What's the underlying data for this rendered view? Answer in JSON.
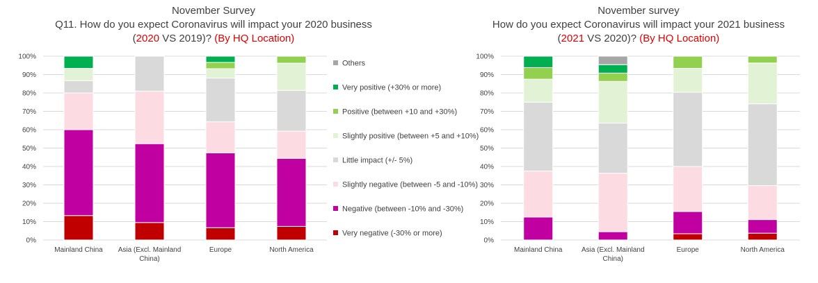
{
  "chart_data": [
    {
      "type": "bar",
      "stacked": true,
      "title_lines": [
        [
          {
            "text": "November Survey",
            "color": "#404040"
          }
        ],
        [
          {
            "text": "Q11. How do you expect Coronavirus will impact your 2020 business",
            "color": "#404040"
          }
        ],
        [
          {
            "text": "(",
            "color": "#404040"
          },
          {
            "text": "2020",
            "color": "#e00000"
          },
          {
            "text": " VS 2019)? ",
            "color": "#404040"
          },
          {
            "text": "(By HQ Location)",
            "color": "#e00000"
          }
        ]
      ],
      "categories": [
        [
          "Mainland China"
        ],
        [
          "Asia (Excl. Mainland",
          "China)"
        ],
        [
          "Europe"
        ],
        [
          "North America"
        ]
      ],
      "ylim": [
        0,
        100
      ],
      "yticks": [
        "0%",
        "10%",
        "20%",
        "30%",
        "40%",
        "50%",
        "60%",
        "70%",
        "80%",
        "90%",
        "100%"
      ],
      "grid": true,
      "series": [
        {
          "name": "Very negative (-30% or more)",
          "color": "#c00000",
          "values": [
            13.3,
            9.5,
            6.7,
            7.4
          ]
        },
        {
          "name": "Negative (between -10% and -30%)",
          "color": "#c000a0",
          "values": [
            46.7,
            42.9,
            40.7,
            37.0
          ]
        },
        {
          "name": "Slightly negative (between -5 and -10%)",
          "color": "#fcdbe3",
          "values": [
            20.0,
            28.6,
            16.9,
            14.8
          ]
        },
        {
          "name": "Little impact (+/- 5%)",
          "color": "#d9d9d9",
          "values": [
            6.7,
            19.0,
            23.8,
            22.2
          ]
        },
        {
          "name": "Slightly positive (between +5 and +10%)",
          "color": "#e2f2d4",
          "values": [
            6.7,
            0,
            5.1,
            14.8
          ]
        },
        {
          "name": "Positive (between +10 and +30%)",
          "color": "#92d050",
          "values": [
            0,
            0,
            3.4,
            3.8
          ]
        },
        {
          "name": "Very positive (+30% or more)",
          "color": "#00b050",
          "values": [
            6.6,
            0,
            3.4,
            0
          ]
        },
        {
          "name": "Others",
          "color": "#a6a6a6",
          "values": [
            0,
            0,
            0,
            0
          ]
        }
      ],
      "legend": "right"
    },
    {
      "type": "bar",
      "stacked": true,
      "title_lines": [
        [
          {
            "text": "November survey",
            "color": "#404040"
          }
        ],
        [
          {
            "text": "How do you expect Coronavirus will impact your 2021 business",
            "color": "#404040"
          }
        ],
        [
          {
            "text": "(",
            "color": "#404040"
          },
          {
            "text": "2021",
            "color": "#e00000"
          },
          {
            "text": " VS 2020)? ",
            "color": "#404040"
          },
          {
            "text": "(By HQ Location)",
            "color": "#e00000"
          }
        ]
      ],
      "categories": [
        [
          "Mainland China"
        ],
        [
          "Asia (Excl. Mainland",
          "China)"
        ],
        [
          "Europe"
        ],
        [
          "North America"
        ]
      ],
      "ylim": [
        0,
        100
      ],
      "yticks": [
        "0%",
        "10%",
        "20%",
        "30%",
        "40%",
        "50%",
        "60%",
        "70%",
        "80%",
        "90%",
        "100%"
      ],
      "grid": true,
      "series": [
        {
          "name": "Very negative (-30% or more)",
          "color": "#c00000",
          "values": [
            0,
            0,
            3.4,
            3.7
          ]
        },
        {
          "name": "Negative (between -10% and -30%)",
          "color": "#c000a0",
          "values": [
            12.5,
            4.5,
            12.1,
            7.4
          ]
        },
        {
          "name": "Slightly negative (between -5 and -10%)",
          "color": "#fcdbe3",
          "values": [
            25.0,
            31.8,
            24.5,
            18.5
          ]
        },
        {
          "name": "Little impact (+/- 5%)",
          "color": "#d9d9d9",
          "values": [
            37.5,
            27.3,
            40.4,
            44.5
          ]
        },
        {
          "name": "Slightly positive (between +5 and +10%)",
          "color": "#e2f2d4",
          "values": [
            12.5,
            22.7,
            13.0,
            22.2
          ]
        },
        {
          "name": "Positive (between +10 and +30%)",
          "color": "#92d050",
          "values": [
            6.3,
            4.5,
            6.6,
            3.7
          ]
        },
        {
          "name": "Very positive (+30% or more)",
          "color": "#00b050",
          "values": [
            6.2,
            4.6,
            0,
            0
          ]
        },
        {
          "name": "Others",
          "color": "#a6a6a6",
          "values": [
            0,
            4.6,
            0,
            0
          ]
        }
      ]
    }
  ]
}
